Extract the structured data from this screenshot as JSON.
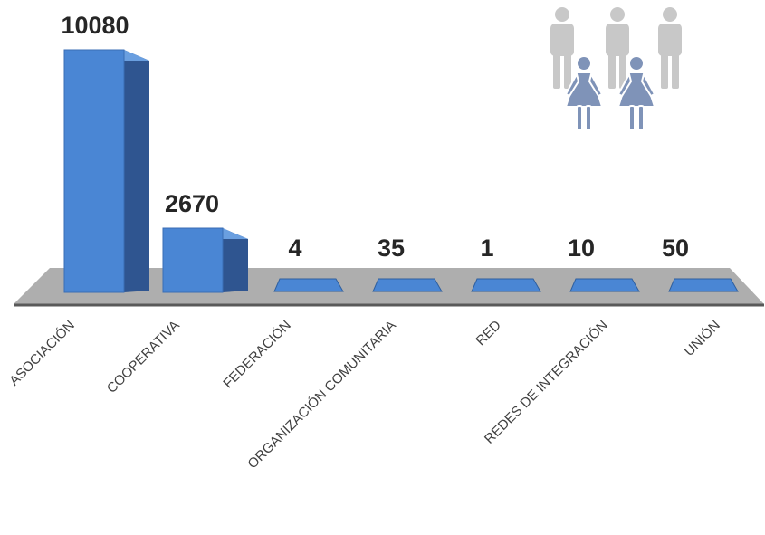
{
  "chart_data": {
    "type": "bar",
    "title": "",
    "xlabel": "",
    "ylabel": "",
    "categories": [
      "ASOCIACIÓN",
      "COOPERATIVA",
      "FEDERACIÓN",
      "ORGANIZACIÓN COMUNITARIA",
      "RED",
      "REDES DE INTEGRACIÓN",
      "UNIÓN"
    ],
    "values": [
      10080,
      2670,
      4,
      35,
      1,
      10,
      50
    ],
    "grid": false,
    "legend": "none",
    "colors": {
      "bar_front": "#4a86d4",
      "bar_side": "#2f5590",
      "bar_top": "#6a9fe0",
      "floor": "#aeaeae",
      "floor_edge": "#595959",
      "icon_male": "#c8c8c8",
      "icon_female": "#7f93b8"
    },
    "icons": [
      "male-person-icon",
      "female-person-icon"
    ]
  }
}
